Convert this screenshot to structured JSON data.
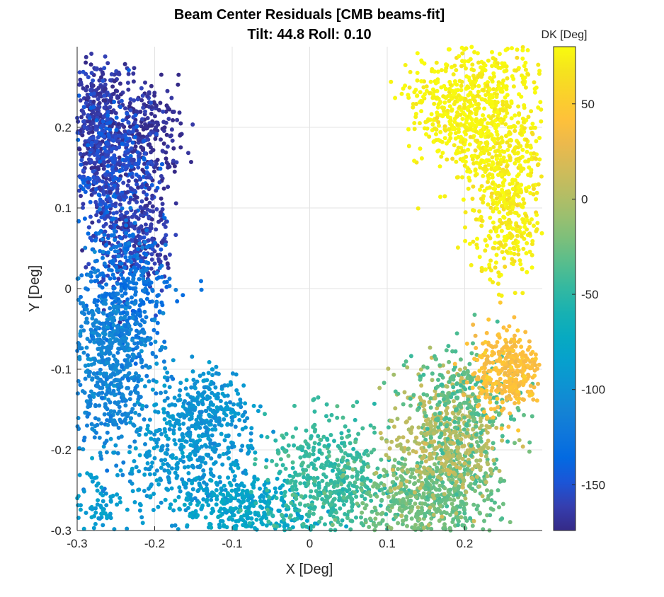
{
  "chart_data": {
    "type": "scatter",
    "title": "Beam Center Residuals [CMB beams-fit]",
    "subtitle": "Tilt: 44.8  Roll: 0.10",
    "xlabel": "X [Deg]",
    "ylabel": "Y [Deg]",
    "xlim": [
      -0.3,
      0.3
    ],
    "ylim": [
      -0.3,
      0.3
    ],
    "x_ticks": [
      -0.3,
      -0.2,
      -0.1,
      0,
      0.1,
      0.2
    ],
    "x_tick_labels": [
      "-0.3",
      "-0.2",
      "-0.1",
      "0",
      "0.1",
      "0.2"
    ],
    "y_ticks": [
      -0.3,
      -0.2,
      -0.1,
      0,
      0.1,
      0.2
    ],
    "y_tick_labels": [
      "-0.3",
      "-0.2",
      "-0.1",
      "0",
      "0.1",
      "0.2"
    ],
    "grid": true,
    "colorbar": {
      "label": "DK [Deg]",
      "clim": [
        -174,
        80
      ],
      "ticks": [
        50,
        0,
        -50,
        -100,
        -150
      ],
      "tick_labels": [
        "50",
        "0",
        "-50",
        "-100",
        "-150"
      ],
      "colormap": "parula"
    },
    "clusters": [
      {
        "x": -0.275,
        "y": 0.2,
        "sx": 0.018,
        "sy": 0.045,
        "dk": -165,
        "n": 420
      },
      {
        "x": -0.21,
        "y": 0.19,
        "sx": 0.025,
        "sy": 0.035,
        "dk": -170,
        "n": 260
      },
      {
        "x": -0.255,
        "y": 0.14,
        "sx": 0.025,
        "sy": 0.045,
        "dk": -150,
        "n": 380
      },
      {
        "x": -0.225,
        "y": 0.07,
        "sx": 0.025,
        "sy": 0.04,
        "dk": -162,
        "n": 300
      },
      {
        "x": -0.24,
        "y": -0.005,
        "sx": 0.028,
        "sy": 0.042,
        "dk": -128,
        "n": 380
      },
      {
        "x": -0.265,
        "y": -0.07,
        "sx": 0.03,
        "sy": 0.035,
        "dk": -108,
        "n": 260
      },
      {
        "x": -0.255,
        "y": -0.125,
        "sx": 0.028,
        "sy": 0.045,
        "dk": -112,
        "n": 320
      },
      {
        "x": -0.155,
        "y": -0.2,
        "sx": 0.042,
        "sy": 0.045,
        "dk": -95,
        "n": 480
      },
      {
        "x": -0.13,
        "y": -0.15,
        "sx": 0.022,
        "sy": 0.025,
        "dk": -98,
        "n": 160
      },
      {
        "x": -0.27,
        "y": -0.27,
        "sx": 0.02,
        "sy": 0.025,
        "dk": -88,
        "n": 90
      },
      {
        "x": -0.085,
        "y": -0.275,
        "sx": 0.04,
        "sy": 0.02,
        "dk": -80,
        "n": 300
      },
      {
        "x": 0.025,
        "y": -0.24,
        "sx": 0.04,
        "sy": 0.04,
        "dk": -45,
        "n": 520
      },
      {
        "x": 0.14,
        "y": -0.265,
        "sx": 0.04,
        "sy": 0.03,
        "dk": -25,
        "n": 360
      },
      {
        "x": 0.19,
        "y": -0.24,
        "sx": 0.03,
        "sy": 0.035,
        "dk": -30,
        "n": 280
      },
      {
        "x": 0.175,
        "y": -0.185,
        "sx": 0.035,
        "sy": 0.04,
        "dk": 5,
        "n": 420
      },
      {
        "x": 0.2,
        "y": -0.14,
        "sx": 0.035,
        "sy": 0.03,
        "dk": -35,
        "n": 240
      },
      {
        "x": 0.255,
        "y": -0.1,
        "sx": 0.022,
        "sy": 0.025,
        "dk": 40,
        "n": 360
      },
      {
        "x": 0.225,
        "y": 0.22,
        "sx": 0.038,
        "sy": 0.045,
        "dk": 78,
        "n": 650
      },
      {
        "x": 0.255,
        "y": 0.1,
        "sx": 0.025,
        "sy": 0.045,
        "dk": 74,
        "n": 380
      },
      {
        "x": 0.165,
        "y": 0.23,
        "sx": 0.02,
        "sy": 0.03,
        "dk": 78,
        "n": 120
      }
    ]
  }
}
